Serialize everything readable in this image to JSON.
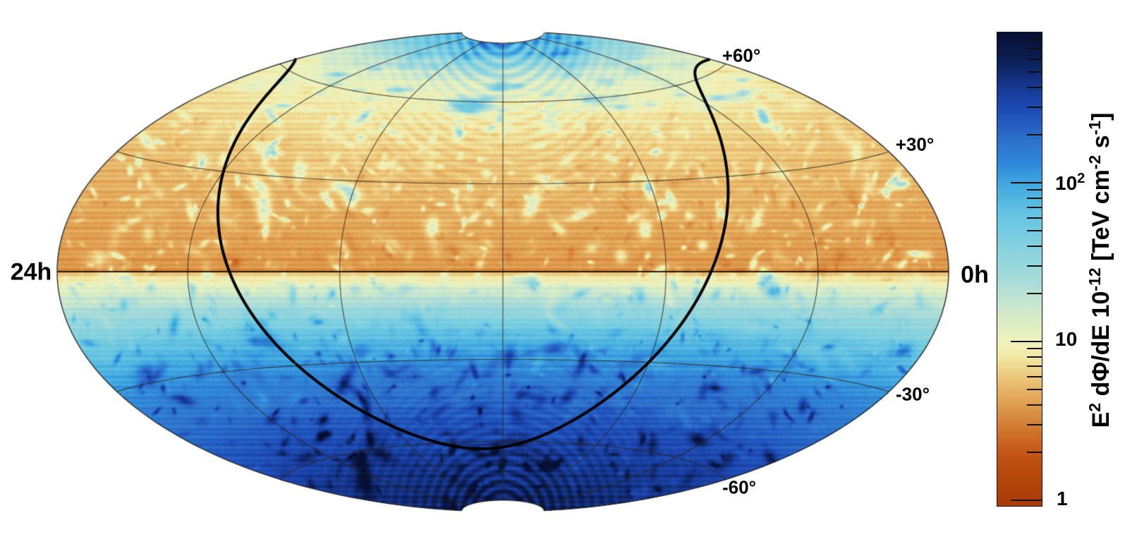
{
  "map": {
    "left_time_label": "24h",
    "right_time_label": "0h",
    "dec_labels": {
      "p60": "+60°",
      "p30": "+30°",
      "m30": "-30°",
      "m60": "-60°"
    }
  },
  "colorbar": {
    "tick_labels": {
      "t100_base": "10",
      "t100_exp": "2",
      "t10": "10",
      "t1": "1"
    },
    "title_parts": {
      "e": "E",
      "e_exp": "2",
      "mid": " dΦ/dE 10",
      "flux_exp": "-12",
      "unit1": " [TeV cm",
      "unit1_exp": "-2",
      "unit2": " s",
      "unit2_exp": "-1",
      "close": "]"
    }
  },
  "chart_data": {
    "type": "heatmap",
    "projection": "hammer-aitoff",
    "coordinates": "equatorial (right ascension, declination)",
    "ra_axis": {
      "left_edge": "24h",
      "right_edge": "0h",
      "grid_meridians_hours": [
        4,
        8,
        12,
        16,
        20
      ]
    },
    "dec_axis": {
      "grid_parallels_deg": [
        60,
        30,
        0,
        -30,
        -60
      ],
      "edge_labels": [
        "+60°",
        "+30°",
        "-30°",
        "-60°"
      ],
      "polar_cap_cut_deg": 84.7
    },
    "colorbar": {
      "title": "E^2 dPhi/dE 10^-12 [TeV cm^-2 s^-1]",
      "scale": "log",
      "min": 0.9,
      "max": 890,
      "major_ticks": [
        1,
        10,
        100
      ],
      "minor_tick_multiples": [
        2,
        3,
        4,
        5,
        6,
        7,
        8,
        9
      ]
    },
    "colormap_stops": [
      [
        0.9,
        "#a83a06"
      ],
      [
        1.2,
        "#b14208"
      ],
      [
        1.6,
        "#bc4c10"
      ],
      [
        2.0,
        "#c45818"
      ],
      [
        2.4,
        "#cc6a26"
      ],
      [
        2.9,
        "#d37c34"
      ],
      [
        3.4,
        "#d98e42"
      ],
      [
        4.1,
        "#e0a052"
      ],
      [
        4.9,
        "#e6b366"
      ],
      [
        5.9,
        "#ecc87c"
      ],
      [
        7.0,
        "#f0dc94"
      ],
      [
        8.4,
        "#f2ecac"
      ],
      [
        10,
        "#eef2bc"
      ],
      [
        13,
        "#dceec4"
      ],
      [
        16,
        "#cde8cc"
      ],
      [
        19,
        "#bce2d2"
      ],
      [
        23,
        "#abdcd8"
      ],
      [
        28,
        "#9cd8dc"
      ],
      [
        42,
        "#7fd0e0"
      ],
      [
        65,
        "#62c2e2"
      ],
      [
        100,
        "#3fa6e0"
      ],
      [
        132,
        "#2f86d8"
      ],
      [
        180,
        "#2f74cc"
      ],
      [
        244,
        "#2258c0"
      ],
      [
        333,
        "#1a42a8"
      ],
      [
        455,
        "#13307e"
      ],
      [
        620,
        "#0b1b4e"
      ],
      [
        890,
        "#060f33"
      ]
    ],
    "flux_vs_declination": [
      [
        -85,
        600
      ],
      [
        -80,
        530
      ],
      [
        -75,
        470
      ],
      [
        -70,
        420
      ],
      [
        -65,
        370
      ],
      [
        -60,
        320
      ],
      [
        -55,
        280
      ],
      [
        -50,
        240
      ],
      [
        -45,
        200
      ],
      [
        -40,
        170
      ],
      [
        -35,
        140
      ],
      [
        -30,
        115
      ],
      [
        -25,
        85
      ],
      [
        -20,
        60
      ],
      [
        -16,
        38
      ],
      [
        -12,
        28
      ],
      [
        -9,
        20
      ],
      [
        -6,
        15
      ],
      [
        -4,
        11
      ],
      [
        -2,
        8
      ],
      [
        -0.4,
        5.5
      ],
      [
        0.4,
        3.5
      ],
      [
        2,
        3.7
      ],
      [
        5,
        3.9
      ],
      [
        10,
        4.1
      ],
      [
        15,
        4.3
      ],
      [
        20,
        4.6
      ],
      [
        25,
        4.9
      ],
      [
        30,
        5.2
      ],
      [
        35,
        5.6
      ],
      [
        40,
        6.1
      ],
      [
        45,
        6.7
      ],
      [
        50,
        7.4
      ],
      [
        55,
        8.4
      ],
      [
        60,
        10
      ],
      [
        63,
        11
      ],
      [
        66,
        13
      ],
      [
        70,
        17
      ],
      [
        74,
        26
      ],
      [
        78,
        45
      ],
      [
        81,
        62
      ],
      [
        84,
        85
      ],
      [
        85,
        90
      ]
    ],
    "overlay_curve": "galactic-plane",
    "galactic_to_equatorial_matrix": [
      [
        -0.0548755604,
        0.4941094279,
        -0.867666149
      ],
      [
        -0.8734370902,
        -0.44482963,
        -0.1980763734
      ],
      [
        -0.4838350155,
        0.7469822445,
        0.4559837762
      ]
    ],
    "noise_texture": {
      "blob_count": 1500,
      "positive_fraction": 0.82,
      "max_log10_amplitude": 0.48,
      "banding_amplitude": 0.045,
      "grain_amplitude": 0.05,
      "pole_ring_amplitude_north": 0.28,
      "pole_ring_amplitude_south": 0.2
    }
  }
}
